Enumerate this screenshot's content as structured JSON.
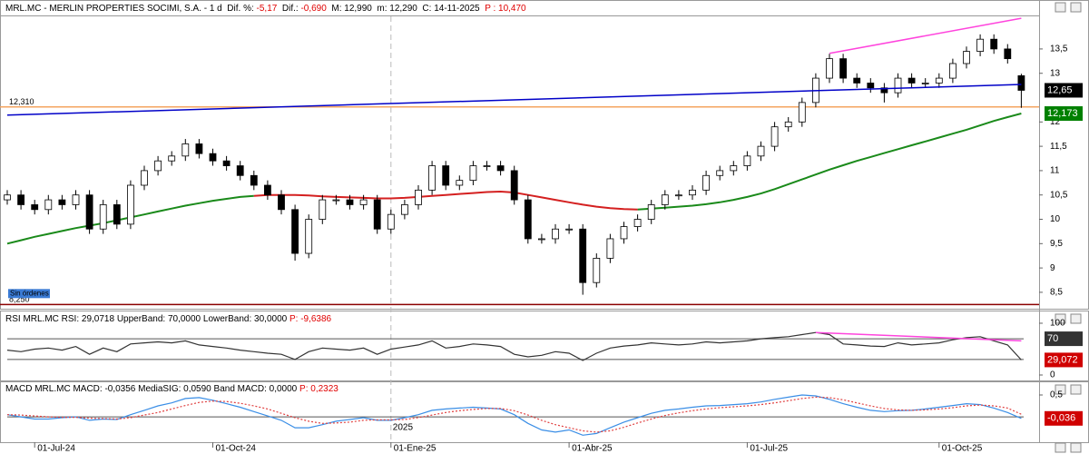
{
  "chart_data": [
    {
      "type": "candlestick",
      "header": [
        {
          "text": "MRL.MC - MERLIN PROPERTIES SOCIMI, S.A. - 1 d  Dif. %: ",
          "color": "#000000"
        },
        {
          "text": "-5,17",
          "color": "#e00000"
        },
        {
          "text": "  Dif.: ",
          "color": "#000000"
        },
        {
          "text": "-0,690",
          "color": "#e00000"
        },
        {
          "text": "  M: 12,990  m: 12,290  C: 14-11-2025  ",
          "color": "#000000"
        },
        {
          "text": "P : 10,470",
          "color": "#e00000"
        }
      ],
      "categories": [
        null,
        null,
        "01-Jul-24",
        null,
        null,
        null,
        null,
        null,
        null,
        null,
        null,
        null,
        null,
        null,
        null,
        "01-Oct-24",
        null,
        null,
        null,
        null,
        null,
        null,
        null,
        null,
        null,
        null,
        null,
        null,
        "01-Ene-25",
        null,
        null,
        null,
        null,
        null,
        null,
        null,
        null,
        null,
        null,
        null,
        null,
        "01-Abr-25",
        null,
        null,
        null,
        null,
        null,
        null,
        null,
        null,
        null,
        null,
        null,
        null,
        "01-Jul-25",
        null,
        null,
        null,
        null,
        null,
        null,
        null,
        null,
        null,
        null,
        null,
        null,
        null,
        "01-Oct-25",
        null,
        null,
        null,
        null,
        null,
        null
      ],
      "open": [
        10.4,
        10.5,
        10.3,
        10.2,
        10.4,
        10.3,
        10.5,
        9.8,
        10.3,
        9.9,
        10.7,
        11.0,
        11.2,
        11.3,
        11.55,
        11.35,
        11.2,
        11.1,
        10.9,
        10.7,
        10.5,
        10.2,
        9.3,
        10.0,
        10.4,
        10.4,
        10.3,
        10.4,
        9.8,
        10.1,
        10.3,
        10.6,
        11.1,
        10.7,
        10.8,
        11.1,
        11.1,
        11.0,
        10.4,
        9.6,
        9.6,
        9.8,
        9.8,
        8.7,
        9.2,
        9.6,
        9.85,
        10.0,
        10.3,
        10.5,
        10.5,
        10.6,
        10.9,
        11.0,
        11.1,
        11.3,
        11.5,
        11.9,
        12.0,
        12.4,
        12.9,
        13.3,
        12.9,
        12.8,
        12.7,
        12.6,
        12.9,
        12.8,
        12.8,
        12.9,
        13.2,
        13.45,
        13.7,
        13.5,
        12.95
      ],
      "high": [
        10.6,
        10.6,
        10.4,
        10.5,
        10.5,
        10.6,
        10.6,
        10.4,
        10.4,
        10.8,
        11.1,
        11.3,
        11.4,
        11.65,
        11.65,
        11.45,
        11.3,
        11.2,
        11.0,
        10.8,
        10.6,
        10.3,
        10.1,
        10.5,
        10.5,
        10.5,
        10.5,
        10.5,
        10.2,
        10.4,
        10.7,
        11.2,
        11.2,
        10.9,
        11.2,
        11.2,
        11.2,
        11.1,
        10.5,
        9.7,
        9.9,
        9.9,
        9.9,
        9.3,
        9.7,
        9.95,
        10.1,
        10.4,
        10.6,
        10.6,
        10.7,
        11.0,
        11.1,
        11.2,
        11.4,
        11.6,
        12.0,
        12.1,
        12.5,
        13.0,
        13.4,
        13.4,
        13.0,
        12.9,
        12.8,
        13.0,
        13.0,
        12.9,
        13.0,
        13.3,
        13.55,
        13.8,
        13.8,
        13.6,
        12.99
      ],
      "low": [
        10.3,
        10.2,
        10.1,
        10.1,
        10.2,
        10.2,
        9.7,
        9.7,
        9.8,
        9.8,
        10.6,
        10.9,
        11.1,
        11.2,
        11.25,
        11.1,
        11.0,
        10.8,
        10.6,
        10.4,
        10.1,
        9.15,
        9.2,
        9.9,
        10.3,
        10.2,
        10.2,
        9.7,
        9.7,
        10.0,
        10.2,
        10.5,
        10.6,
        10.6,
        10.7,
        11.0,
        10.9,
        10.3,
        9.5,
        9.5,
        9.5,
        9.7,
        8.45,
        8.6,
        9.1,
        9.5,
        9.75,
        9.9,
        10.2,
        10.4,
        10.4,
        10.5,
        10.8,
        10.9,
        11.0,
        11.2,
        11.4,
        11.8,
        11.9,
        12.3,
        12.8,
        12.8,
        12.7,
        12.6,
        12.4,
        12.5,
        12.7,
        12.7,
        12.7,
        12.8,
        13.1,
        13.35,
        13.4,
        13.2,
        12.29
      ],
      "close": [
        10.5,
        10.3,
        10.2,
        10.4,
        10.3,
        10.5,
        9.8,
        10.3,
        9.9,
        10.7,
        11.0,
        11.2,
        11.3,
        11.55,
        11.35,
        11.2,
        11.1,
        10.9,
        10.7,
        10.5,
        10.2,
        9.3,
        10.0,
        10.4,
        10.4,
        10.3,
        10.4,
        9.8,
        10.1,
        10.3,
        10.6,
        11.1,
        10.7,
        10.8,
        11.1,
        11.1,
        11.0,
        10.4,
        9.6,
        9.6,
        9.8,
        9.8,
        8.7,
        9.2,
        9.6,
        9.85,
        10.0,
        10.3,
        10.5,
        10.5,
        10.6,
        10.9,
        11.0,
        11.1,
        11.3,
        11.5,
        11.9,
        12.0,
        12.4,
        12.9,
        13.3,
        12.9,
        12.8,
        12.7,
        12.6,
        12.9,
        12.8,
        12.8,
        12.9,
        13.2,
        13.45,
        13.7,
        13.5,
        13.3,
        12.65
      ],
      "up_color": "#ffffff",
      "down_color": "#000000",
      "series": [
        {
          "color": "#1a8a1a",
          "values": [
            9.5,
            9.57,
            9.64,
            9.7,
            9.76,
            9.82,
            9.87,
            9.92,
            9.98,
            10.04,
            10.1,
            10.16,
            10.22,
            10.28,
            10.33,
            10.38,
            10.42,
            10.46,
            10.48,
            null,
            null,
            null,
            null,
            null,
            null,
            null,
            null,
            null,
            null,
            null,
            null,
            null,
            null,
            null,
            null,
            null,
            null,
            null,
            null,
            null,
            null,
            null,
            null,
            null,
            null,
            null,
            10.2,
            10.22,
            10.24,
            10.26,
            10.28,
            10.31,
            10.35,
            10.4,
            10.46,
            10.53,
            10.62,
            10.72,
            10.82,
            10.92,
            11.02,
            11.11,
            11.2,
            11.28,
            11.36,
            11.44,
            11.52,
            11.6,
            11.68,
            11.76,
            11.84,
            11.93,
            12.02,
            12.1,
            12.173
          ]
        },
        {
          "color": "#d42020",
          "values": [
            null,
            null,
            null,
            null,
            null,
            null,
            null,
            null,
            null,
            null,
            null,
            null,
            null,
            null,
            null,
            null,
            null,
            null,
            10.48,
            10.5,
            10.5,
            10.5,
            10.49,
            10.47,
            10.46,
            10.45,
            10.44,
            10.43,
            10.43,
            10.44,
            10.46,
            10.48,
            10.5,
            10.52,
            10.54,
            10.56,
            10.57,
            10.55,
            10.5,
            10.45,
            10.4,
            10.35,
            10.3,
            10.26,
            10.23,
            10.21,
            10.2,
            null,
            null,
            null,
            null,
            null,
            null,
            null,
            null,
            null,
            null,
            null,
            null,
            null,
            null,
            null,
            null,
            null,
            null,
            null,
            null,
            null,
            null,
            null,
            null,
            null,
            null,
            null,
            null
          ]
        }
      ],
      "trendlines": [
        {
          "color": "#0000c8",
          "start": [
            0,
            12.14
          ],
          "end": [
            74,
            12.77
          ]
        },
        {
          "color": "#ff44dd",
          "start": [
            60,
            13.41
          ],
          "end": [
            74,
            14.13
          ]
        }
      ],
      "levels": [
        {
          "value": 12.31,
          "label": "12,310",
          "color": "#f4a460"
        },
        {
          "value": 8.25,
          "label": "8,250",
          "color": "#8b0000",
          "badge": "Sin órdenes"
        }
      ],
      "markers": [
        {
          "value": 12.65,
          "label": "12,65",
          "color": "#000000"
        },
        {
          "value": 12.173,
          "label": "12,173",
          "color": "#008000"
        }
      ],
      "separator": {
        "index": 28,
        "label": "2025"
      },
      "ylim": [
        8.2,
        14.17
      ],
      "yticks": [
        {
          "value": 8.5,
          "label": "8,5"
        },
        9,
        {
          "value": 9.5,
          "label": "9,5"
        },
        10,
        {
          "value": 10.5,
          "label": "10,5"
        },
        11,
        {
          "value": 11.5,
          "label": "11,5"
        },
        12,
        13,
        {
          "value": 13.5,
          "label": "13,5"
        }
      ]
    },
    {
      "type": "line",
      "header": [
        {
          "text": "RSI MRL.MC RSI: 29,0718 UpperBand: 70,0000 LowerBand: 30,0000 ",
          "color": "#000000"
        },
        {
          "text": "P: -9,6386",
          "color": "#e00000"
        }
      ],
      "series": [
        {
          "color": "#333333",
          "values": [
            48,
            45,
            50,
            52,
            48,
            55,
            40,
            52,
            45,
            60,
            62,
            64,
            62,
            66,
            58,
            55,
            52,
            48,
            45,
            42,
            40,
            30,
            45,
            52,
            50,
            48,
            52,
            40,
            50,
            54,
            58,
            66,
            52,
            55,
            60,
            58,
            55,
            40,
            35,
            38,
            45,
            42,
            28,
            42,
            52,
            56,
            58,
            62,
            60,
            58,
            60,
            64,
            62,
            64,
            66,
            70,
            72,
            74,
            78,
            82,
            78,
            60,
            58,
            56,
            55,
            62,
            58,
            60,
            62,
            68,
            72,
            74,
            66,
            58,
            29.0718
          ]
        }
      ],
      "trendlines": [
        {
          "color": "#ff44dd",
          "start": [
            59,
            82
          ],
          "end": [
            74,
            66
          ]
        }
      ],
      "bands": [
        70,
        30
      ],
      "markers": [
        {
          "value": 70,
          "label": "70",
          "color": "#333333"
        },
        {
          "value": 29.0718,
          "label": "29,072",
          "color": "#d00000"
        }
      ],
      "ylim": [
        -12.3,
        117.5
      ],
      "yticks": [
        0,
        100
      ]
    },
    {
      "type": "line",
      "header": [
        {
          "text": "MACD MRL.MC MACD: -0,0356 MediaSIG: 0,0590 Band MACD: 0,0000 ",
          "color": "#000000"
        },
        {
          "text": "P: 0,2323",
          "color": "#e00000"
        }
      ],
      "series": [
        {
          "color": "#3a8ee6",
          "values": [
            0.05,
            0.0,
            -0.05,
            -0.05,
            -0.02,
            0.0,
            -0.08,
            -0.05,
            -0.06,
            0.05,
            0.15,
            0.25,
            0.32,
            0.42,
            0.44,
            0.38,
            0.3,
            0.22,
            0.12,
            0.02,
            -0.08,
            -0.25,
            -0.25,
            -0.18,
            -0.1,
            -0.06,
            -0.02,
            -0.08,
            -0.08,
            -0.02,
            0.05,
            0.15,
            0.18,
            0.2,
            0.22,
            0.2,
            0.18,
            0.05,
            -0.15,
            -0.3,
            -0.35,
            -0.3,
            -0.42,
            -0.38,
            -0.25,
            -0.12,
            -0.02,
            0.08,
            0.15,
            0.18,
            0.22,
            0.25,
            0.26,
            0.28,
            0.3,
            0.34,
            0.4,
            0.45,
            0.5,
            0.48,
            0.4,
            0.3,
            0.22,
            0.15,
            0.12,
            0.14,
            0.15,
            0.18,
            0.22,
            0.26,
            0.3,
            0.28,
            0.2,
            0.1,
            -0.0356
          ]
        },
        {
          "color": "#e04040",
          "dashed": true,
          "values": [
            0.05,
            0.04,
            0.02,
            0.0,
            -0.01,
            -0.01,
            -0.03,
            -0.04,
            -0.05,
            -0.02,
            0.04,
            0.1,
            0.18,
            0.26,
            0.33,
            0.36,
            0.35,
            0.31,
            0.25,
            0.18,
            0.08,
            -0.02,
            -0.1,
            -0.15,
            -0.14,
            -0.12,
            -0.08,
            -0.07,
            -0.07,
            -0.06,
            -0.02,
            0.04,
            0.1,
            0.14,
            0.17,
            0.19,
            0.19,
            0.14,
            0.04,
            -0.08,
            -0.18,
            -0.25,
            -0.32,
            -0.35,
            -0.32,
            -0.24,
            -0.14,
            -0.05,
            0.03,
            0.09,
            0.14,
            0.18,
            0.21,
            0.23,
            0.25,
            0.28,
            0.32,
            0.37,
            0.42,
            0.45,
            0.44,
            0.39,
            0.32,
            0.25,
            0.19,
            0.16,
            0.15,
            0.16,
            0.18,
            0.21,
            0.25,
            0.27,
            0.25,
            0.2,
            0.059
          ]
        }
      ],
      "bands": [
        0
      ],
      "markers": [
        {
          "value": -0.0356,
          "label": "-0,036",
          "color": "#d00000"
        }
      ],
      "ylim": [
        -0.58,
        0.77
      ],
      "yticks": [
        {
          "value": 0.5,
          "label": "0,5"
        }
      ]
    }
  ]
}
